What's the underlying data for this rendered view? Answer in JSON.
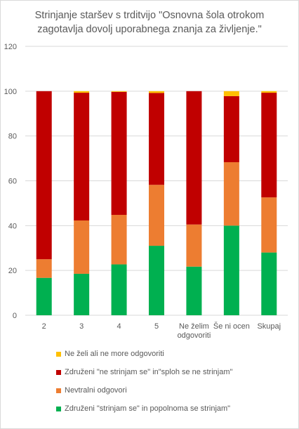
{
  "chart_data": {
    "type": "bar",
    "stacked": true,
    "title": "Strinjanje staršev s trditvijo \"Osnovna šola otrokom zagotavlja dovolj uporabnega znanja za življenje.\"",
    "title_lines": [
      "Strinjanje staršev s trditvijo \"Osnovna šola otrokom",
      "zagotavlja dovolj uporabnega znanja za življenje.\""
    ],
    "xlabel": "",
    "ylabel": "",
    "categories": [
      [
        "2"
      ],
      [
        "3"
      ],
      [
        "4"
      ],
      [
        "5"
      ],
      [
        "Ne želim",
        "odgovoriti"
      ],
      [
        "Še ni ocen"
      ],
      [
        "Skupaj"
      ]
    ],
    "ylim": [
      0,
      120
    ],
    "yticks": [
      0,
      20,
      40,
      60,
      80,
      100,
      120
    ],
    "grid": true,
    "legend_position": "bottom",
    "series": [
      {
        "name": "Združeni  \"strinjam se\" in popolnoma se strinjam\"",
        "color": "#00b050",
        "values": [
          16.7,
          18.5,
          22.7,
          31.0,
          21.7,
          40.0,
          28.0
        ]
      },
      {
        "name": "Nevtralni odgovori",
        "color": "#ed7d31",
        "values": [
          8.3,
          23.8,
          22.1,
          27.2,
          18.8,
          28.3,
          24.6
        ]
      },
      {
        "name": "Združeni  \"ne strinjam se\" in\"sploh se ne strinjam\"",
        "color": "#c00000",
        "values": [
          75.0,
          57.0,
          54.9,
          41.0,
          59.5,
          29.5,
          46.7
        ]
      },
      {
        "name": "Ne želi ali ne more odgovoriti",
        "color": "#ffc000",
        "values": [
          0.0,
          0.7,
          0.3,
          0.8,
          0.0,
          2.2,
          0.7
        ]
      }
    ],
    "legend_order": [
      3,
      2,
      1,
      0
    ]
  }
}
